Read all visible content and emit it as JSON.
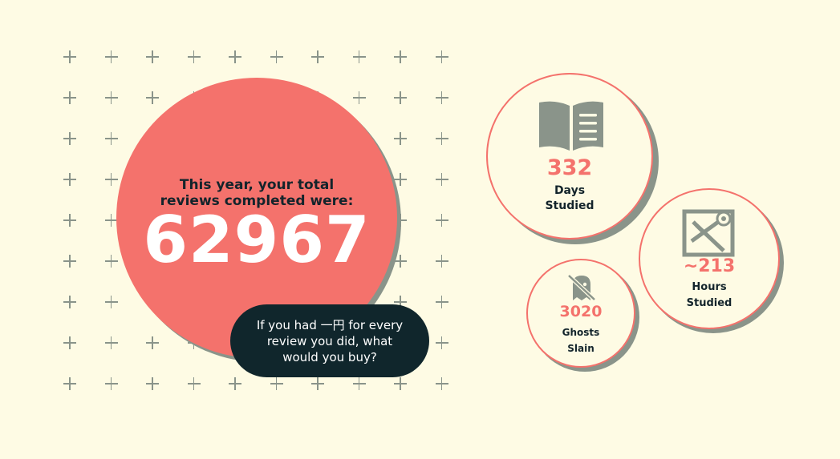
{
  "main": {
    "label": "This year, your total reviews completed were:",
    "total_reviews": "62967"
  },
  "bubble": {
    "text": "If you had 一円 for every review you did, what would you buy?"
  },
  "stats": {
    "days": {
      "value": "332",
      "label_line1": "Days",
      "label_line2": "Studied",
      "icon": "open-book-icon"
    },
    "hours": {
      "value": "~213",
      "label_line1": "Hours",
      "label_line2": "Studied",
      "icon": "kanji-stamp-icon"
    },
    "ghosts": {
      "value": "3020",
      "label_line1": "Ghosts",
      "label_line2": "Slain",
      "icon": "ghost-off-icon"
    }
  },
  "colors": {
    "background": "#fefbe4",
    "accent": "#f4726c",
    "dark": "#10262c",
    "shadow": "#8a948a"
  }
}
